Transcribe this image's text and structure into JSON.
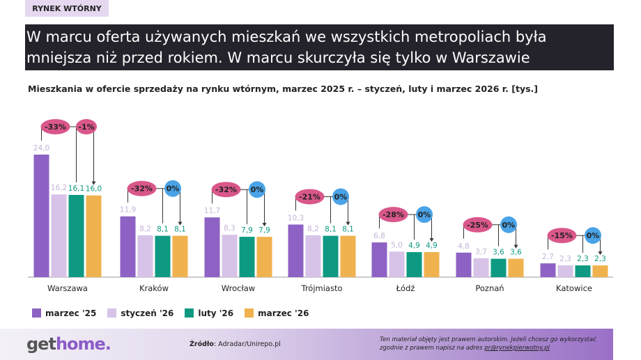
{
  "tag": "RYNEK WTÓRNY",
  "headline": [
    "W marcu oferta używanych mieszkań we wszystkich metropoliach była",
    "mniejsza niż przed rokiem. W marcu skurczyła się tylko w Warszawie"
  ],
  "chart_data": {
    "type": "bar",
    "title": "Mieszkania w ofercie sprzedaży na rynku wtórnym, marzec 2025 r. – styczeń, luty i marzec 2026 r. [tys.]",
    "categories": [
      "Warszawa",
      "Kraków",
      "Wrocław",
      "Trójmiasto",
      "Łódź",
      "Poznań",
      "Katowice"
    ],
    "series": [
      {
        "name": "marzec '25",
        "color": "#8d62c4",
        "values": [
          24.0,
          11.9,
          11.7,
          10.3,
          6.8,
          4.8,
          2.7
        ],
        "labels": [
          "24,0",
          "11,9",
          "11,7",
          "10,3",
          "6,8",
          "4,8",
          "2,7"
        ]
      },
      {
        "name": "styczeń '26",
        "color": "#d7c3e8",
        "values": [
          16.2,
          8.2,
          8.3,
          8.2,
          5.0,
          3.7,
          2.3
        ],
        "labels": [
          "16,2",
          "8,2",
          "8,3",
          "8,2",
          "5,0",
          "3,7",
          "2,3"
        ]
      },
      {
        "name": "luty '26",
        "color": "#0e9a82",
        "values": [
          16.1,
          8.1,
          7.9,
          8.1,
          4.9,
          3.6,
          2.3
        ],
        "labels": [
          "16,1",
          "8,1",
          "7,9",
          "8,1",
          "4,9",
          "3,6",
          "2,3"
        ]
      },
      {
        "name": "marzec '26",
        "color": "#f0b24e",
        "values": [
          16.0,
          8.1,
          7.9,
          8.1,
          4.9,
          3.6,
          2.3
        ],
        "labels": [
          "16,0",
          "8,1",
          "7,9",
          "8,1",
          "4,9",
          "3,6",
          "2,3"
        ]
      }
    ],
    "yoy_change": [
      "-33%",
      "-32%",
      "-32%",
      "-21%",
      "-28%",
      "-25%",
      "-15%"
    ],
    "mom_change": [
      "-1%",
      "0%",
      "0%",
      "0%",
      "0%",
      "0%",
      "0%"
    ],
    "ylim": [
      0,
      24
    ]
  },
  "colors": {
    "yoy_badge": "#d9578a",
    "mom_neg": "#d9578a",
    "mom_zero": "#4aa3e6"
  },
  "footer": {
    "logo_a": "get",
    "logo_b": "home.",
    "source_label": "Źródło",
    "source": ": Adradar/Unirepo.pl",
    "note": "Ten materiał objęty jest prawem autorskim. Jeżeli chcesz go wykorzystać",
    "note2": "zgodnie z prawem napisz na adres ",
    "email": "pr@rynekpierwotny.pl"
  }
}
